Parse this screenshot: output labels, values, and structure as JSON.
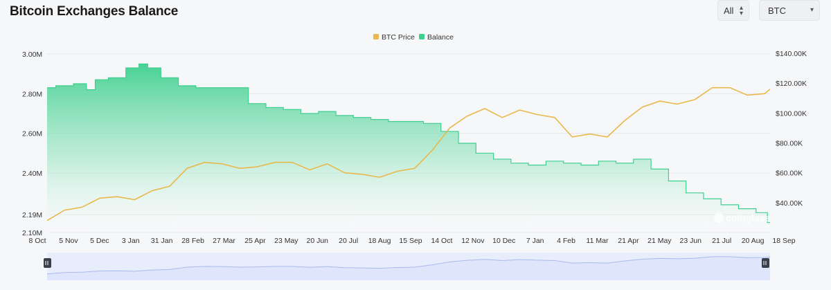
{
  "header": {
    "title": "Bitcoin Exchanges Balance"
  },
  "controls": {
    "range_label": "All",
    "unit_label": "BTC"
  },
  "watermark": "coinglass",
  "colors": {
    "price": "#e9b84a",
    "balance": "#3ecf8e",
    "balance_fill_top": "#41d091",
    "navigator_fill": "#dfe6fb",
    "navigator_line": "#a9b9ec"
  },
  "chart_data": {
    "type": "area",
    "title": "Bitcoin Exchanges Balance",
    "legend": [
      "BTC Price",
      "Balance"
    ],
    "legend_position": "top-center",
    "x_tick_labels": [
      "8 Oct",
      "5 Nov",
      "5 Dec",
      "3 Jan",
      "31 Jan",
      "28 Feb",
      "27 Mar",
      "25 Apr",
      "23 May",
      "20 Jun",
      "20 Jul",
      "18 Aug",
      "15 Sep",
      "14 Oct",
      "12 Nov",
      "10 Dec",
      "7 Jan",
      "4 Feb",
      "11 Mar",
      "21 Apr",
      "21 May",
      "23 Jun",
      "21 Jul",
      "20 Aug",
      "18 Sep"
    ],
    "y_left_ticks": [
      {
        "v": 3.0,
        "label": "3.00M"
      },
      {
        "v": 2.8,
        "label": "2.80M"
      },
      {
        "v": 2.6,
        "label": "2.60M"
      },
      {
        "v": 2.4,
        "label": "2.40M"
      },
      {
        "v": 2.19,
        "label": "2.19M"
      },
      {
        "v": 2.1,
        "label": "2.10M"
      }
    ],
    "y_right_ticks": [
      {
        "v": 140000,
        "label": "$140.00K"
      },
      {
        "v": 120000,
        "label": "$120.00K"
      },
      {
        "v": 100000,
        "label": "$100.00K"
      },
      {
        "v": 80000,
        "label": "$80.00K"
      },
      {
        "v": 60000,
        "label": "$60.00K"
      },
      {
        "v": 40000,
        "label": "$40.00K"
      }
    ],
    "y_left_range": [
      2.1,
      3.0
    ],
    "y_right_range": [
      40000,
      140000
    ],
    "series": [
      {
        "name": "Balance",
        "axis": "left",
        "values": [
          [
            0,
            2.83
          ],
          [
            1,
            2.84
          ],
          [
            2,
            2.85
          ],
          [
            2.5,
            2.82
          ],
          [
            3,
            2.87
          ],
          [
            4,
            2.88
          ],
          [
            5,
            2.93
          ],
          [
            5.5,
            2.95
          ],
          [
            6,
            2.93
          ],
          [
            7,
            2.88
          ],
          [
            8,
            2.84
          ],
          [
            9,
            2.83
          ],
          [
            11,
            2.83
          ],
          [
            12,
            2.75
          ],
          [
            13,
            2.73
          ],
          [
            14,
            2.72
          ],
          [
            15,
            2.7
          ],
          [
            16,
            2.71
          ],
          [
            17,
            2.69
          ],
          [
            18,
            2.68
          ],
          [
            19,
            2.67
          ],
          [
            20,
            2.66
          ],
          [
            21,
            2.66
          ],
          [
            22,
            2.65
          ],
          [
            23,
            2.61
          ],
          [
            24,
            2.55
          ],
          [
            25,
            2.5
          ],
          [
            26,
            2.47
          ],
          [
            27,
            2.45
          ],
          [
            28,
            2.44
          ],
          [
            29,
            2.46
          ],
          [
            30,
            2.45
          ],
          [
            31,
            2.44
          ],
          [
            32,
            2.46
          ],
          [
            33,
            2.45
          ],
          [
            34,
            2.47
          ],
          [
            35,
            2.42
          ],
          [
            36,
            2.36
          ],
          [
            37,
            2.3
          ],
          [
            38,
            2.27
          ],
          [
            39,
            2.24
          ],
          [
            40,
            2.22
          ],
          [
            41,
            2.2
          ],
          [
            41.3,
            2.15
          ]
        ]
      },
      {
        "name": "BTC Price",
        "axis": "right",
        "values": [
          [
            0,
            28000
          ],
          [
            1,
            35000
          ],
          [
            2,
            37000
          ],
          [
            3,
            43000
          ],
          [
            4,
            44000
          ],
          [
            5,
            42000
          ],
          [
            6,
            48000
          ],
          [
            7,
            51000
          ],
          [
            8,
            63000
          ],
          [
            9,
            67000
          ],
          [
            10,
            66000
          ],
          [
            11,
            63000
          ],
          [
            12,
            64000
          ],
          [
            13,
            67000
          ],
          [
            14,
            67000
          ],
          [
            15,
            62000
          ],
          [
            16,
            66000
          ],
          [
            17,
            60000
          ],
          [
            18,
            59000
          ],
          [
            19,
            57000
          ],
          [
            20,
            61000
          ],
          [
            21,
            63000
          ],
          [
            22,
            75000
          ],
          [
            23,
            90000
          ],
          [
            24,
            98000
          ],
          [
            25,
            103000
          ],
          [
            26,
            97000
          ],
          [
            27,
            102000
          ],
          [
            28,
            99000
          ],
          [
            29,
            97000
          ],
          [
            30,
            84000
          ],
          [
            31,
            86000
          ],
          [
            32,
            84000
          ],
          [
            33,
            95000
          ],
          [
            34,
            104000
          ],
          [
            35,
            108000
          ],
          [
            36,
            106000
          ],
          [
            37,
            109000
          ],
          [
            38,
            117000
          ],
          [
            39,
            117000
          ],
          [
            40,
            112000
          ],
          [
            41,
            113000
          ],
          [
            41.3,
            116000
          ]
        ]
      }
    ]
  }
}
